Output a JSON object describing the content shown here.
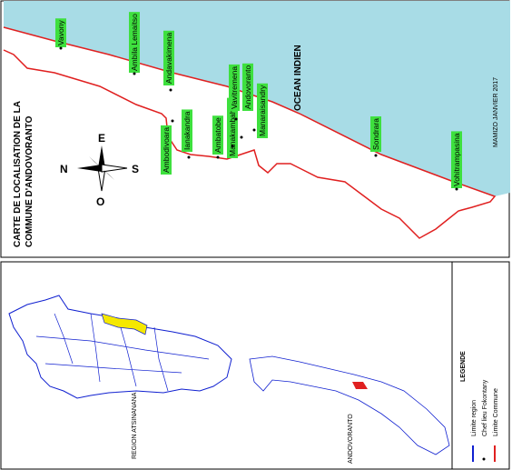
{
  "top_map": {
    "title_line1": "CARTE DE LOCALISATION DE LA",
    "title_line2": "COMMUNE D'ANDOVORANTO",
    "ocean": "OCEAN INDIEN",
    "author": "MAMIZO JANVIER 2017",
    "compass": {
      "north": "N",
      "south": "S",
      "east": "E",
      "west": "O"
    },
    "places": [
      "Vavony",
      "Ambila Lemaitso",
      "Andavakimena",
      "Ambodivoara",
      "Ianakandra",
      "Ambatobe",
      "Manakambahiny",
      "Vavitremena",
      "Andovoranto",
      "Manaraisandry",
      "Sondrara",
      "Vohitrampasina"
    ]
  },
  "bottom_map": {
    "region_label": "REGION ATSINANANA",
    "commune_label": "ANDOVORANTO",
    "legend": {
      "title": "LEGENDE",
      "items": [
        "Limite region",
        "Chef lieu Fokontany",
        "Limite Commune"
      ]
    }
  }
}
